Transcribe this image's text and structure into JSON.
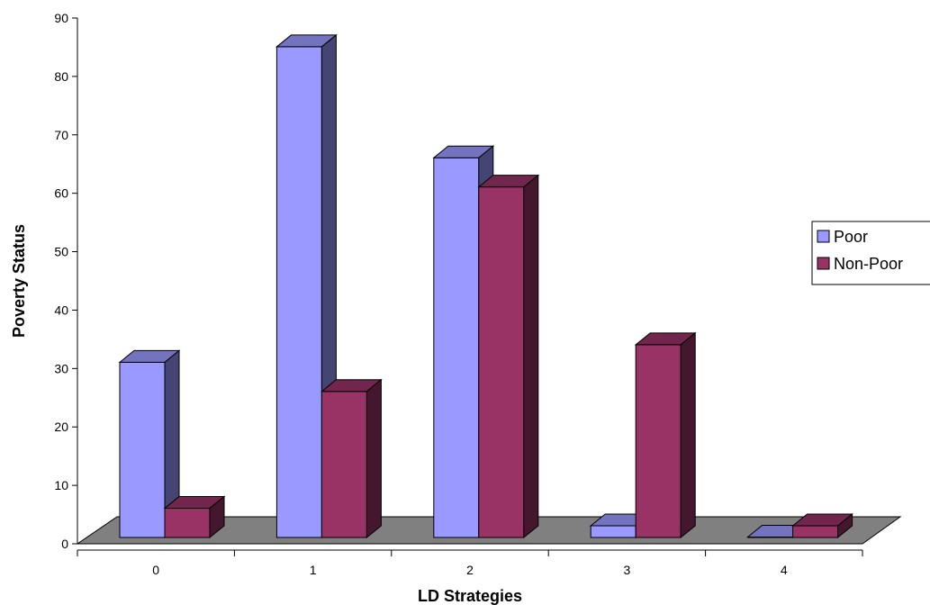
{
  "chart_data": {
    "type": "bar",
    "title": "",
    "xlabel": "LD Strategies",
    "ylabel": "Poverty Status",
    "categories": [
      "0",
      "1",
      "2",
      "3",
      "4"
    ],
    "series": [
      {
        "name": "Poor",
        "values": [
          30,
          84,
          65,
          2,
          0
        ],
        "color": "#9999ff"
      },
      {
        "name": "Non-Poor",
        "values": [
          5,
          25,
          60,
          33,
          2
        ],
        "color": "#993366"
      }
    ],
    "ylim": [
      0,
      90
    ],
    "yticks": [
      "0",
      "10",
      "20",
      "30",
      "40",
      "50",
      "60",
      "70",
      "80",
      "90"
    ],
    "grid": false,
    "legend_position": "right",
    "floor_color": "#808080"
  }
}
